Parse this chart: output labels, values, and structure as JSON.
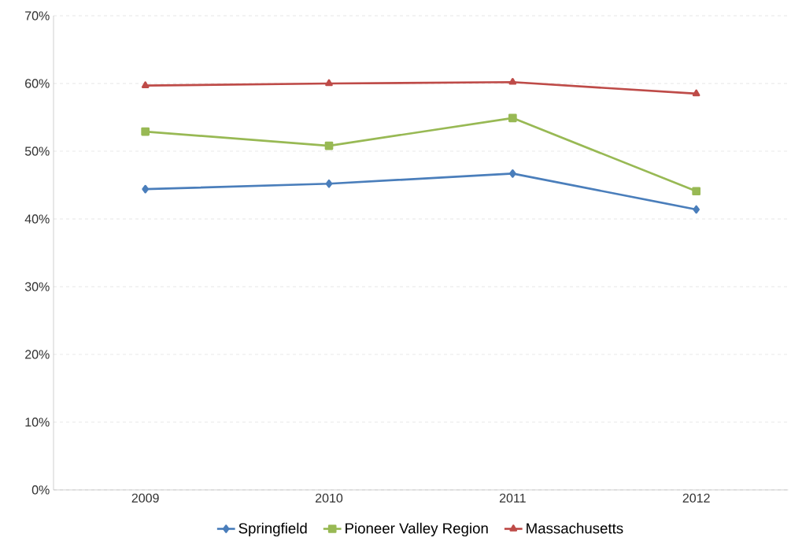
{
  "chart_data": {
    "type": "line",
    "categories": [
      "2009",
      "2010",
      "2011",
      "2012"
    ],
    "series": [
      {
        "name": "Springfield",
        "color": "#4a7ebb",
        "marker": "diamond",
        "values": [
          44.4,
          45.2,
          46.7,
          41.4
        ]
      },
      {
        "name": "Pioneer Valley Region",
        "color": "#98b954",
        "marker": "square",
        "values": [
          52.9,
          50.8,
          54.9,
          44.1
        ]
      },
      {
        "name": "Massachusetts",
        "color": "#be4b48",
        "marker": "triangle",
        "values": [
          59.7,
          60.0,
          60.2,
          58.5
        ]
      }
    ],
    "ylim": [
      0,
      70
    ],
    "yticks": [
      {
        "value": 0,
        "label": "0%"
      },
      {
        "value": 10,
        "label": "10%"
      },
      {
        "value": 20,
        "label": "20%"
      },
      {
        "value": 30,
        "label": "30%"
      },
      {
        "value": 40,
        "label": "40%"
      },
      {
        "value": 50,
        "label": "50%"
      },
      {
        "value": 60,
        "label": "60%"
      },
      {
        "value": 70,
        "label": "70%"
      }
    ],
    "grid": "y",
    "legend": "bottom",
    "line_style": "solid"
  }
}
